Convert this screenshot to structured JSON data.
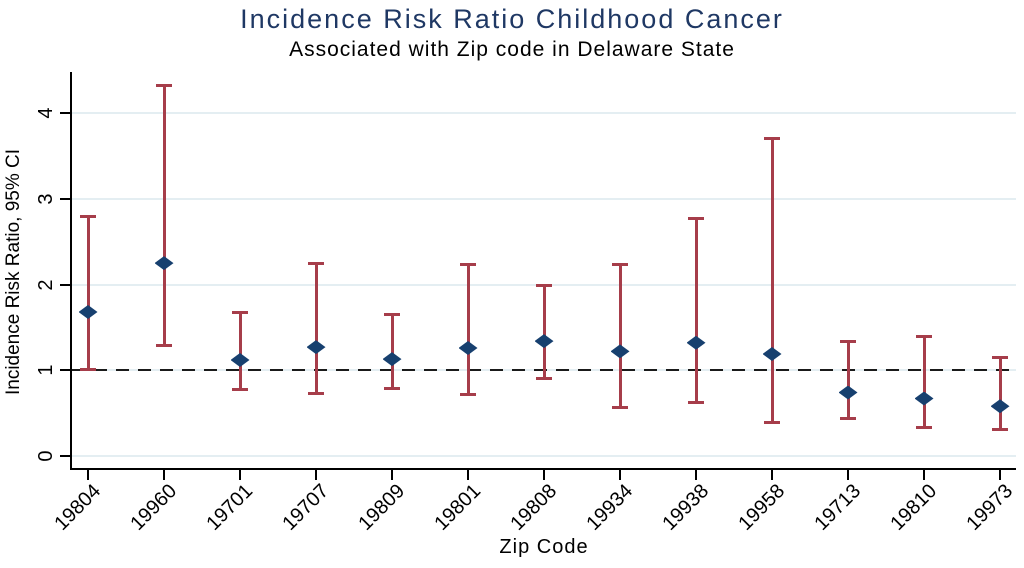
{
  "chart_data": {
    "type": "scatter",
    "subtype": "point-estimates-with-95ci-errorbars",
    "title": "Incidence Risk Ratio Childhood Cancer",
    "subtitle": "Associated with Zip code in Delaware State",
    "xlabel": "Zip Code",
    "ylabel": "Incidence Risk Ratio, 95% CI",
    "categories": [
      "19804",
      "19960",
      "19701",
      "19707",
      "19809",
      "19801",
      "19808",
      "19934",
      "19938",
      "19958",
      "19713",
      "19810",
      "19973"
    ],
    "series": [
      {
        "name": "Incidence Risk Ratio",
        "values": [
          1.68,
          2.25,
          1.12,
          1.27,
          1.13,
          1.26,
          1.34,
          1.22,
          1.32,
          1.19,
          0.74,
          0.67,
          0.58
        ]
      },
      {
        "name": "95% CI lower",
        "values": [
          1.0,
          1.28,
          0.77,
          0.72,
          0.78,
          0.71,
          0.9,
          0.56,
          0.62,
          0.39,
          0.43,
          0.33,
          0.3
        ]
      },
      {
        "name": "95% CI upper",
        "values": [
          2.8,
          4.33,
          1.68,
          2.25,
          1.66,
          2.24,
          2.0,
          2.24,
          2.78,
          3.71,
          1.34,
          1.4,
          1.15
        ]
      }
    ],
    "yticks": [
      0,
      1,
      2,
      3,
      4
    ],
    "ylim": [
      0,
      4.48
    ],
    "reference_line_y": 1,
    "grid": true,
    "legend": false
  },
  "colors": {
    "title_navy": "#1f3864",
    "marker_navy": "#17406f",
    "error_bar_red": "#a63d4a",
    "gridline_blue": "#e4eef2",
    "axis_black": "#000000",
    "reference_dash": "#1a1a1a"
  }
}
